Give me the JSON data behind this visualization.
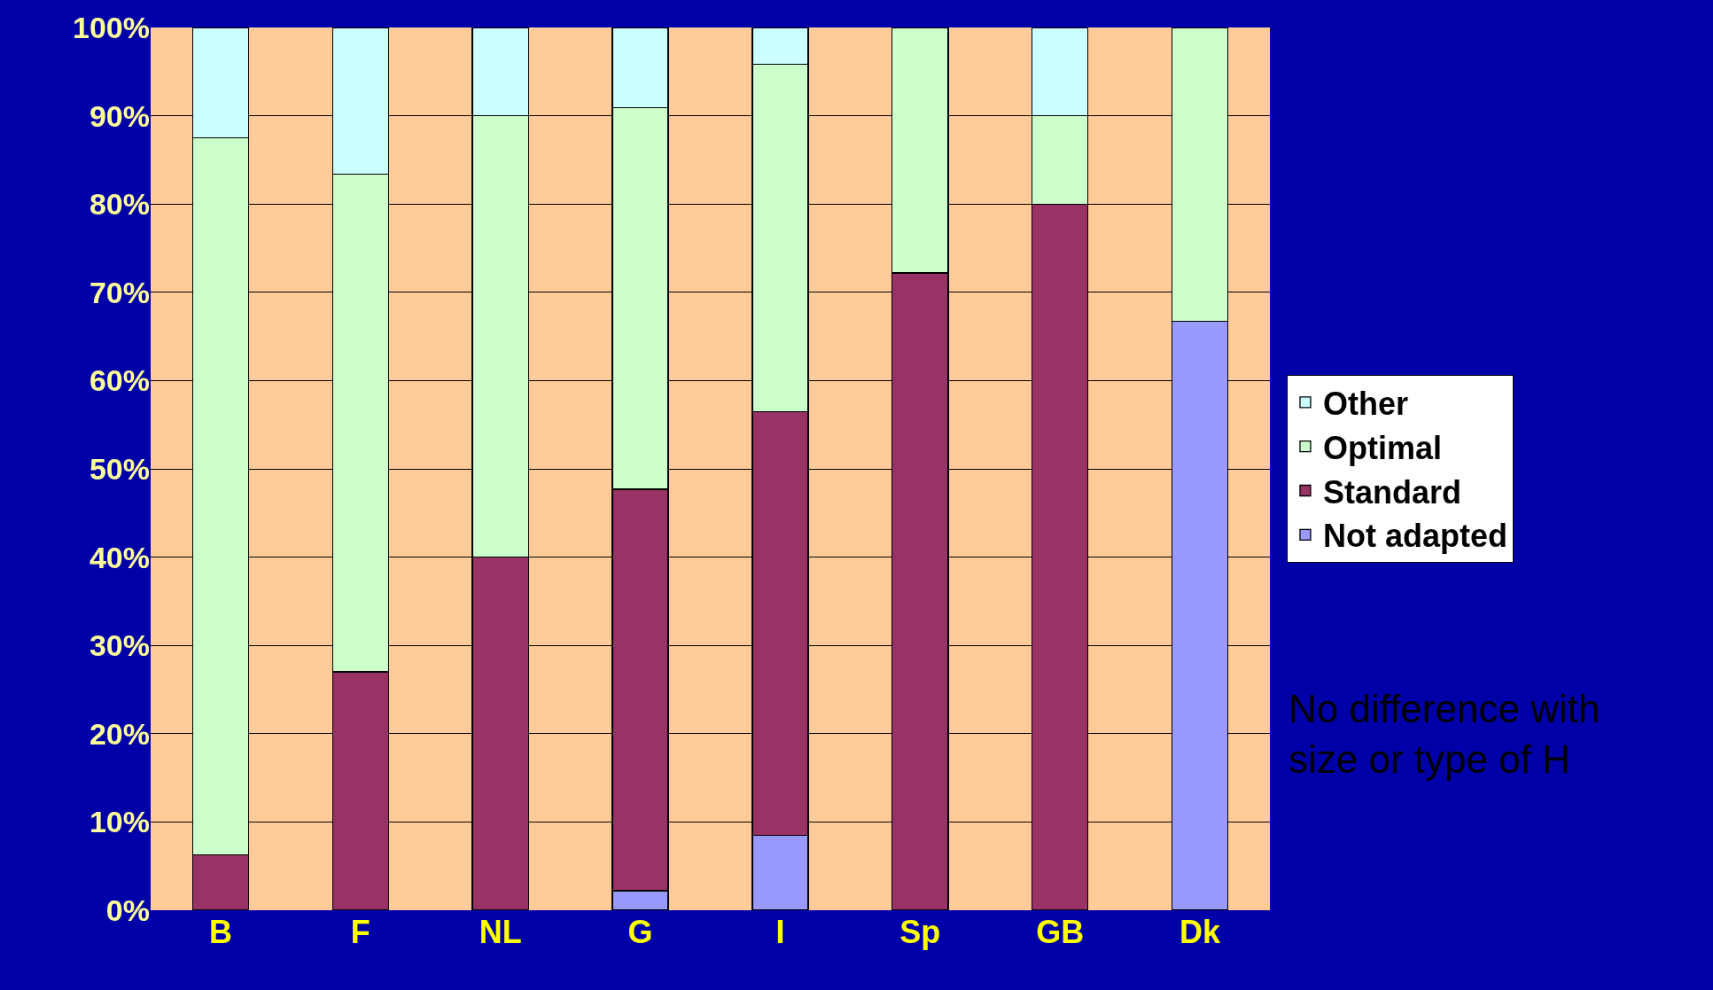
{
  "chart_data": {
    "type": "bar",
    "stacked": true,
    "categories": [
      "B",
      "F",
      "NL",
      "G",
      "I",
      "Sp",
      "GB",
      "Dk"
    ],
    "series": [
      {
        "name": "Not adapted",
        "color": "#9999ff",
        "values": [
          null,
          null,
          null,
          2.2,
          8.5,
          null,
          null,
          66.7
        ]
      },
      {
        "name": "Standard",
        "color": "#993366",
        "values": [
          6.3,
          27,
          40,
          45.5,
          48,
          72.2,
          80,
          null
        ]
      },
      {
        "name": "Optimal",
        "color": "#ccffcc",
        "values": [
          81.2,
          56.4,
          50,
          43.2,
          39.3,
          27.8,
          10,
          33.3
        ]
      },
      {
        "name": "Other",
        "color": "#ccffff",
        "values": [
          12.5,
          16.6,
          10,
          9.1,
          4.2,
          null,
          10,
          null
        ]
      }
    ],
    "ylim": [
      0,
      100
    ],
    "yticks": [
      {
        "value": 0,
        "label": "0%"
      },
      {
        "value": 10,
        "label": "10%"
      },
      {
        "value": 20,
        "label": "20%"
      },
      {
        "value": 30,
        "label": "30%"
      },
      {
        "value": 40,
        "label": "40%"
      },
      {
        "value": 50,
        "label": "50%"
      },
      {
        "value": 60,
        "label": "60%"
      },
      {
        "value": 70,
        "label": "70%"
      },
      {
        "value": 80,
        "label": "80%"
      },
      {
        "value": 90,
        "label": "90%"
      },
      {
        "value": 100,
        "label": "100%"
      }
    ],
    "grid": "y",
    "legend": "right",
    "annotations": [
      "No difference with size or type of H"
    ]
  }
}
